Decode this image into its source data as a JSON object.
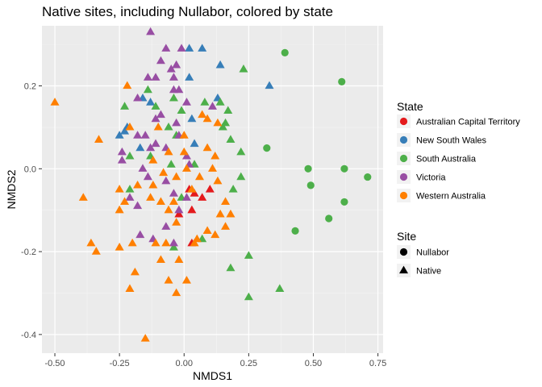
{
  "chart_data": {
    "type": "scatter",
    "title": "Native sites, including Nullabor, colored by state",
    "xlabel": "NMDS1",
    "ylabel": "NMDS2",
    "xlim": [
      -0.55,
      0.77
    ],
    "ylim": [
      -0.445,
      0.345
    ],
    "x_ticks": [
      -0.5,
      -0.25,
      0.0,
      0.25,
      0.5,
      0.75
    ],
    "x_tick_labels": [
      "-0.50",
      "-0.25",
      "0.00",
      "0.25",
      "0.50",
      "0.75"
    ],
    "y_ticks": [
      -0.4,
      -0.2,
      0.0,
      0.2
    ],
    "y_tick_labels": [
      "-0.4",
      "-0.2",
      "0.0",
      "0.2"
    ],
    "grid": true,
    "legend_placement": "right",
    "color_legend": {
      "title": "State",
      "entries": [
        {
          "label": "Australian Capital Territory",
          "color": "#E41A1C"
        },
        {
          "label": "New South Wales",
          "color": "#377EB8"
        },
        {
          "label": "South Australia",
          "color": "#4DAF4A"
        },
        {
          "label": "Victoria",
          "color": "#984EA3"
        },
        {
          "label": "Western Australia",
          "color": "#FF7F00"
        }
      ]
    },
    "shape_legend": {
      "title": "Site",
      "entries": [
        {
          "label": "Nullabor",
          "shape": "circle"
        },
        {
          "label": "Native",
          "shape": "triangle"
        }
      ]
    },
    "series": [
      {
        "name": "Australian Capital Territory",
        "color": "#E41A1C",
        "points": [
          {
            "x": 0.02,
            "y": -0.05,
            "site": "Native"
          },
          {
            "x": 0.1,
            "y": -0.05,
            "site": "Native"
          },
          {
            "x": 0.04,
            "y": -0.06,
            "site": "Native"
          },
          {
            "x": 0.07,
            "y": -0.07,
            "site": "Native"
          },
          {
            "x": -0.02,
            "y": -0.11,
            "site": "Native"
          },
          {
            "x": 0.03,
            "y": -0.1,
            "site": "Native"
          },
          {
            "x": 0.03,
            "y": -0.18,
            "site": "Native"
          }
        ]
      },
      {
        "name": "New South Wales",
        "color": "#377EB8",
        "points": [
          {
            "x": 0.02,
            "y": 0.29,
            "site": "Native"
          },
          {
            "x": 0.07,
            "y": 0.29,
            "site": "Native"
          },
          {
            "x": 0.14,
            "y": 0.25,
            "site": "Native"
          },
          {
            "x": 0.02,
            "y": 0.22,
            "site": "Native"
          },
          {
            "x": 0.33,
            "y": 0.2,
            "site": "Native"
          },
          {
            "x": -0.16,
            "y": 0.17,
            "site": "Native"
          },
          {
            "x": 0.13,
            "y": 0.17,
            "site": "Native"
          },
          {
            "x": -0.13,
            "y": 0.16,
            "site": "Native"
          },
          {
            "x": -0.25,
            "y": 0.08,
            "site": "Native"
          },
          {
            "x": -0.23,
            "y": 0.09,
            "site": "Native"
          },
          {
            "x": -0.22,
            "y": 0.1,
            "site": "Native"
          },
          {
            "x": 0.03,
            "y": 0.12,
            "site": "Native"
          },
          {
            "x": 0.04,
            "y": 0.06,
            "site": "Native"
          },
          {
            "x": -0.17,
            "y": 0.05,
            "site": "Native"
          }
        ]
      },
      {
        "name": "South Australia",
        "color": "#4DAF4A",
        "points": [
          {
            "x": 0.39,
            "y": 0.28,
            "site": "Nullabor"
          },
          {
            "x": 0.61,
            "y": 0.21,
            "site": "Nullabor"
          },
          {
            "x": 0.32,
            "y": 0.05,
            "site": "Nullabor"
          },
          {
            "x": 0.48,
            "y": 0.0,
            "site": "Nullabor"
          },
          {
            "x": 0.62,
            "y": 0.0,
            "site": "Nullabor"
          },
          {
            "x": 0.71,
            "y": -0.02,
            "site": "Nullabor"
          },
          {
            "x": 0.49,
            "y": -0.04,
            "site": "Nullabor"
          },
          {
            "x": 0.62,
            "y": -0.08,
            "site": "Nullabor"
          },
          {
            "x": 0.56,
            "y": -0.12,
            "site": "Nullabor"
          },
          {
            "x": 0.43,
            "y": -0.15,
            "site": "Nullabor"
          },
          {
            "x": 0.23,
            "y": 0.24,
            "site": "Native"
          },
          {
            "x": -0.14,
            "y": 0.19,
            "site": "Native"
          },
          {
            "x": -0.23,
            "y": 0.15,
            "site": "Native"
          },
          {
            "x": -0.11,
            "y": 0.15,
            "site": "Native"
          },
          {
            "x": -0.04,
            "y": 0.17,
            "site": "Native"
          },
          {
            "x": -0.01,
            "y": 0.14,
            "site": "Native"
          },
          {
            "x": 0.08,
            "y": 0.16,
            "site": "Native"
          },
          {
            "x": 0.14,
            "y": 0.16,
            "site": "Native"
          },
          {
            "x": 0.17,
            "y": 0.14,
            "site": "Native"
          },
          {
            "x": 0.15,
            "y": 0.1,
            "site": "Native"
          },
          {
            "x": 0.16,
            "y": 0.11,
            "site": "Native"
          },
          {
            "x": -0.06,
            "y": 0.1,
            "site": "Native"
          },
          {
            "x": -0.03,
            "y": 0.08,
            "site": "Native"
          },
          {
            "x": 0.18,
            "y": 0.07,
            "site": "Native"
          },
          {
            "x": 0.22,
            "y": 0.04,
            "site": "Native"
          },
          {
            "x": -0.21,
            "y": 0.03,
            "site": "Native"
          },
          {
            "x": -0.13,
            "y": 0.03,
            "site": "Native"
          },
          {
            "x": -0.05,
            "y": 0.01,
            "site": "Native"
          },
          {
            "x": 0.04,
            "y": 0.01,
            "site": "Native"
          },
          {
            "x": 0.22,
            "y": -0.02,
            "site": "Native"
          },
          {
            "x": 0.19,
            "y": -0.05,
            "site": "Native"
          },
          {
            "x": -0.21,
            "y": -0.05,
            "site": "Native"
          },
          {
            "x": -0.01,
            "y": -0.07,
            "site": "Native"
          },
          {
            "x": 0.07,
            "y": -0.17,
            "site": "Native"
          },
          {
            "x": -0.04,
            "y": -0.19,
            "site": "Native"
          },
          {
            "x": 0.25,
            "y": -0.21,
            "site": "Native"
          },
          {
            "x": 0.18,
            "y": -0.24,
            "site": "Native"
          },
          {
            "x": 0.37,
            "y": -0.29,
            "site": "Native"
          },
          {
            "x": 0.25,
            "y": -0.31,
            "site": "Native"
          }
        ]
      },
      {
        "name": "Victoria",
        "color": "#984EA3",
        "points": [
          {
            "x": -0.13,
            "y": 0.33,
            "site": "Native"
          },
          {
            "x": -0.07,
            "y": 0.29,
            "site": "Native"
          },
          {
            "x": -0.01,
            "y": 0.29,
            "site": "Native"
          },
          {
            "x": -0.09,
            "y": 0.26,
            "site": "Native"
          },
          {
            "x": -0.03,
            "y": 0.25,
            "site": "Native"
          },
          {
            "x": -0.04,
            "y": 0.22,
            "site": "Native"
          },
          {
            "x": -0.05,
            "y": 0.24,
            "site": "Native"
          },
          {
            "x": -0.11,
            "y": 0.22,
            "site": "Native"
          },
          {
            "x": -0.14,
            "y": 0.22,
            "site": "Native"
          },
          {
            "x": -0.18,
            "y": 0.17,
            "site": "Native"
          },
          {
            "x": -0.04,
            "y": 0.19,
            "site": "Native"
          },
          {
            "x": -0.02,
            "y": 0.19,
            "site": "Native"
          },
          {
            "x": 0.01,
            "y": 0.16,
            "site": "Native"
          },
          {
            "x": 0.11,
            "y": 0.15,
            "site": "Native"
          },
          {
            "x": -0.11,
            "y": 0.12,
            "site": "Native"
          },
          {
            "x": -0.09,
            "y": 0.13,
            "site": "Native"
          },
          {
            "x": -0.03,
            "y": 0.11,
            "site": "Native"
          },
          {
            "x": -0.18,
            "y": 0.08,
            "site": "Native"
          },
          {
            "x": -0.15,
            "y": 0.08,
            "site": "Native"
          },
          {
            "x": -0.02,
            "y": 0.08,
            "site": "Native"
          },
          {
            "x": -0.07,
            "y": 0.05,
            "site": "Native"
          },
          {
            "x": -0.11,
            "y": 0.06,
            "site": "Native"
          },
          {
            "x": -0.24,
            "y": 0.04,
            "site": "Native"
          },
          {
            "x": -0.13,
            "y": 0.05,
            "site": "Native"
          },
          {
            "x": 0.01,
            "y": 0.03,
            "site": "Native"
          },
          {
            "x": 0.02,
            "y": 0.01,
            "site": "Native"
          },
          {
            "x": -0.16,
            "y": 0.0,
            "site": "Native"
          },
          {
            "x": -0.24,
            "y": 0.02,
            "site": "Native"
          },
          {
            "x": -0.14,
            "y": -0.02,
            "site": "Native"
          },
          {
            "x": -0.07,
            "y": -0.03,
            "site": "Native"
          },
          {
            "x": -0.04,
            "y": -0.06,
            "site": "Native"
          },
          {
            "x": 0.01,
            "y": -0.07,
            "site": "Native"
          },
          {
            "x": -0.18,
            "y": -0.09,
            "site": "Native"
          },
          {
            "x": -0.21,
            "y": -0.07,
            "site": "Native"
          },
          {
            "x": -0.02,
            "y": -0.1,
            "site": "Native"
          },
          {
            "x": -0.07,
            "y": -0.14,
            "site": "Native"
          },
          {
            "x": -0.17,
            "y": -0.16,
            "site": "Native"
          },
          {
            "x": -0.12,
            "y": -0.17,
            "site": "Native"
          },
          {
            "x": -0.04,
            "y": -0.18,
            "site": "Native"
          }
        ]
      },
      {
        "name": "Western Australia",
        "color": "#FF7F00",
        "points": [
          {
            "x": -0.5,
            "y": 0.16,
            "site": "Native"
          },
          {
            "x": -0.22,
            "y": 0.2,
            "site": "Native"
          },
          {
            "x": -0.33,
            "y": 0.07,
            "site": "Native"
          },
          {
            "x": 0.13,
            "y": 0.11,
            "site": "Native"
          },
          {
            "x": 0.09,
            "y": 0.12,
            "site": "Native"
          },
          {
            "x": 0.07,
            "y": 0.13,
            "site": "Native"
          },
          {
            "x": -0.21,
            "y": 0.1,
            "site": "Native"
          },
          {
            "x": -0.1,
            "y": 0.1,
            "site": "Native"
          },
          {
            "x": 0.0,
            "y": 0.08,
            "site": "Native"
          },
          {
            "x": 0.09,
            "y": 0.05,
            "site": "Native"
          },
          {
            "x": 0.12,
            "y": 0.03,
            "site": "Native"
          },
          {
            "x": -0.06,
            "y": 0.04,
            "site": "Native"
          },
          {
            "x": 0.0,
            "y": 0.04,
            "site": "Native"
          },
          {
            "x": -0.12,
            "y": 0.02,
            "site": "Native"
          },
          {
            "x": 0.01,
            "y": 0.0,
            "site": "Native"
          },
          {
            "x": 0.11,
            "y": 0.0,
            "site": "Native"
          },
          {
            "x": -0.08,
            "y": -0.01,
            "site": "Native"
          },
          {
            "x": -0.03,
            "y": -0.02,
            "site": "Native"
          },
          {
            "x": 0.06,
            "y": -0.02,
            "site": "Native"
          },
          {
            "x": 0.13,
            "y": -0.03,
            "site": "Native"
          },
          {
            "x": -0.12,
            "y": -0.04,
            "site": "Native"
          },
          {
            "x": -0.18,
            "y": -0.04,
            "site": "Native"
          },
          {
            "x": -0.25,
            "y": -0.05,
            "site": "Native"
          },
          {
            "x": 0.03,
            "y": -0.05,
            "site": "Native"
          },
          {
            "x": -0.09,
            "y": -0.08,
            "site": "Native"
          },
          {
            "x": -0.13,
            "y": -0.07,
            "site": "Native"
          },
          {
            "x": -0.04,
            "y": -0.08,
            "site": "Native"
          },
          {
            "x": -0.23,
            "y": -0.08,
            "site": "Native"
          },
          {
            "x": 0.16,
            "y": -0.08,
            "site": "Native"
          },
          {
            "x": -0.39,
            "y": -0.07,
            "site": "Native"
          },
          {
            "x": -0.06,
            "y": -0.1,
            "site": "Native"
          },
          {
            "x": -0.25,
            "y": -0.1,
            "site": "Native"
          },
          {
            "x": 0.14,
            "y": -0.11,
            "site": "Native"
          },
          {
            "x": 0.18,
            "y": -0.11,
            "site": "Native"
          },
          {
            "x": -0.03,
            "y": -0.13,
            "site": "Native"
          },
          {
            "x": 0.09,
            "y": -0.15,
            "site": "Native"
          },
          {
            "x": 0.16,
            "y": -0.14,
            "site": "Native"
          },
          {
            "x": 0.05,
            "y": -0.17,
            "site": "Native"
          },
          {
            "x": 0.12,
            "y": -0.16,
            "site": "Native"
          },
          {
            "x": 0.04,
            "y": -0.18,
            "site": "Native"
          },
          {
            "x": -0.36,
            "y": -0.18,
            "site": "Native"
          },
          {
            "x": -0.25,
            "y": -0.19,
            "site": "Native"
          },
          {
            "x": -0.2,
            "y": -0.18,
            "site": "Native"
          },
          {
            "x": -0.11,
            "y": -0.18,
            "site": "Native"
          },
          {
            "x": -0.07,
            "y": -0.18,
            "site": "Native"
          },
          {
            "x": -0.34,
            "y": -0.2,
            "site": "Native"
          },
          {
            "x": -0.09,
            "y": -0.22,
            "site": "Native"
          },
          {
            "x": -0.02,
            "y": -0.22,
            "site": "Native"
          },
          {
            "x": -0.19,
            "y": -0.25,
            "site": "Native"
          },
          {
            "x": -0.06,
            "y": -0.27,
            "site": "Native"
          },
          {
            "x": 0.01,
            "y": -0.27,
            "site": "Native"
          },
          {
            "x": -0.21,
            "y": -0.29,
            "site": "Native"
          },
          {
            "x": -0.03,
            "y": -0.3,
            "site": "Native"
          },
          {
            "x": -0.15,
            "y": -0.41,
            "site": "Native"
          }
        ]
      }
    ]
  }
}
